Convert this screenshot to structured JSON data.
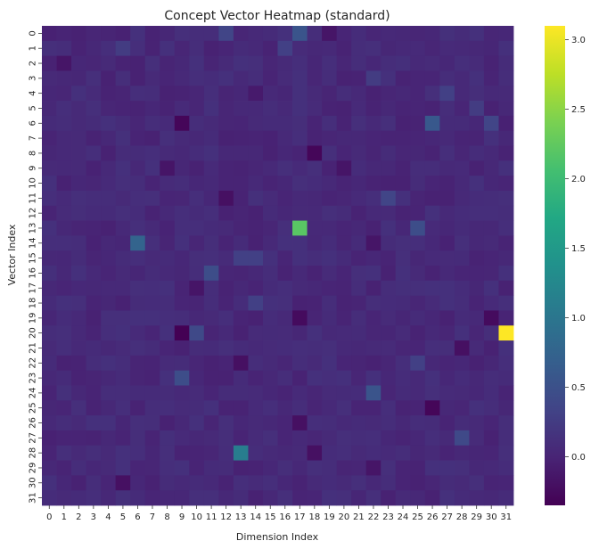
{
  "chart_data": {
    "type": "heatmap",
    "title": "Concept Vector Heatmap (standard)",
    "xlabel": "Dimension Index",
    "ylabel": "Vector Index",
    "x_ticks": [
      "0",
      "1",
      "2",
      "3",
      "4",
      "5",
      "6",
      "7",
      "8",
      "9",
      "10",
      "11",
      "12",
      "13",
      "14",
      "15",
      "16",
      "17",
      "18",
      "19",
      "20",
      "21",
      "22",
      "23",
      "24",
      "25",
      "26",
      "27",
      "28",
      "29",
      "30",
      "31"
    ],
    "y_ticks": [
      "0",
      "1",
      "2",
      "3",
      "4",
      "5",
      "6",
      "7",
      "8",
      "9",
      "10",
      "11",
      "12",
      "13",
      "14",
      "15",
      "16",
      "17",
      "18",
      "19",
      "20",
      "21",
      "22",
      "23",
      "24",
      "25",
      "26",
      "27",
      "28",
      "29",
      "30",
      "31"
    ],
    "colormap": "viridis",
    "vmin": -0.35,
    "vmax": 3.1,
    "colorbar_ticks": [
      "0.0",
      "0.5",
      "1.0",
      "1.5",
      "2.0",
      "2.5",
      "3.0"
    ],
    "colorbar_tick_values": [
      0,
      0.5,
      1.0,
      1.5,
      2.0,
      2.5,
      3.0
    ],
    "baseline_value": 0.05,
    "cells": [
      {
        "row": 0,
        "col": 12,
        "value": 0.35
      },
      {
        "row": 0,
        "col": 17,
        "value": 0.55
      },
      {
        "row": 0,
        "col": 19,
        "value": -0.15
      },
      {
        "row": 1,
        "col": 5,
        "value": 0.25
      },
      {
        "row": 1,
        "col": 16,
        "value": 0.3
      },
      {
        "row": 2,
        "col": 1,
        "value": -0.15
      },
      {
        "row": 3,
        "col": 22,
        "value": 0.25
      },
      {
        "row": 4,
        "col": 14,
        "value": -0.1
      },
      {
        "row": 4,
        "col": 27,
        "value": 0.3
      },
      {
        "row": 5,
        "col": 29,
        "value": 0.25
      },
      {
        "row": 6,
        "col": 9,
        "value": -0.3
      },
      {
        "row": 6,
        "col": 26,
        "value": 0.6
      },
      {
        "row": 6,
        "col": 30,
        "value": 0.35
      },
      {
        "row": 8,
        "col": 18,
        "value": -0.3
      },
      {
        "row": 9,
        "col": 8,
        "value": -0.15
      },
      {
        "row": 9,
        "col": 20,
        "value": -0.15
      },
      {
        "row": 11,
        "col": 12,
        "value": -0.2
      },
      {
        "row": 11,
        "col": 23,
        "value": 0.35
      },
      {
        "row": 13,
        "col": 17,
        "value": 2.2
      },
      {
        "row": 13,
        "col": 25,
        "value": 0.45
      },
      {
        "row": 14,
        "col": 6,
        "value": 0.75
      },
      {
        "row": 14,
        "col": 22,
        "value": -0.15
      },
      {
        "row": 15,
        "col": 13,
        "value": 0.3
      },
      {
        "row": 15,
        "col": 14,
        "value": 0.3
      },
      {
        "row": 16,
        "col": 11,
        "value": 0.45
      },
      {
        "row": 17,
        "col": 10,
        "value": -0.15
      },
      {
        "row": 18,
        "col": 14,
        "value": 0.3
      },
      {
        "row": 19,
        "col": 17,
        "value": -0.25
      },
      {
        "row": 19,
        "col": 30,
        "value": -0.25
      },
      {
        "row": 20,
        "col": 9,
        "value": -0.35
      },
      {
        "row": 20,
        "col": 10,
        "value": 0.4
      },
      {
        "row": 20,
        "col": 31,
        "value": 3.1
      },
      {
        "row": 21,
        "col": 28,
        "value": -0.2
      },
      {
        "row": 22,
        "col": 13,
        "value": -0.2
      },
      {
        "row": 22,
        "col": 25,
        "value": 0.3
      },
      {
        "row": 23,
        "col": 9,
        "value": 0.45
      },
      {
        "row": 24,
        "col": 22,
        "value": 0.55
      },
      {
        "row": 25,
        "col": 26,
        "value": -0.3
      },
      {
        "row": 26,
        "col": 17,
        "value": -0.2
      },
      {
        "row": 27,
        "col": 28,
        "value": 0.4
      },
      {
        "row": 28,
        "col": 13,
        "value": 1.1
      },
      {
        "row": 28,
        "col": 18,
        "value": -0.2
      },
      {
        "row": 29,
        "col": 22,
        "value": -0.15
      },
      {
        "row": 30,
        "col": 5,
        "value": -0.2
      }
    ]
  }
}
